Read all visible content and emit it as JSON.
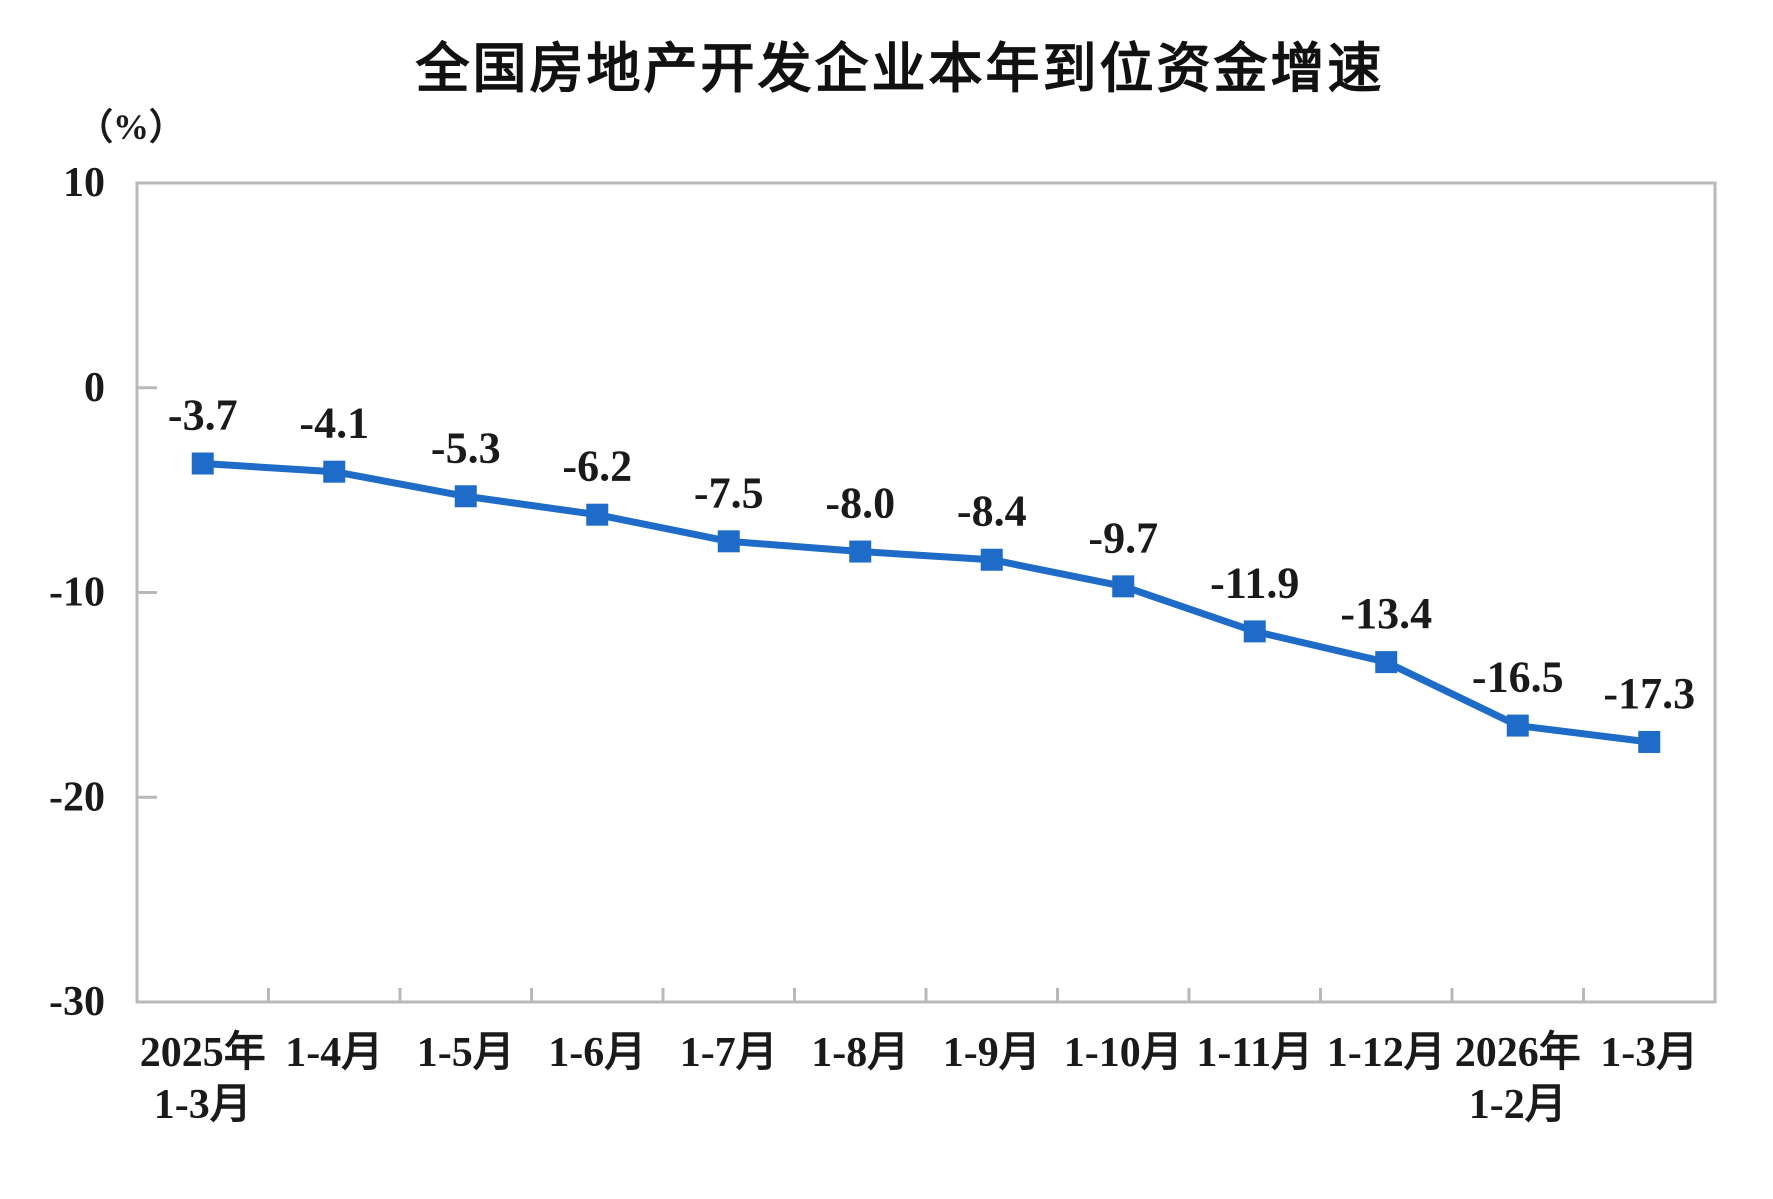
{
  "page": {
    "title": "全国房地产开发企业本年到位资金增速",
    "unit_label": "（%）"
  },
  "chart_data": {
    "type": "line",
    "title": "全国房地产开发企业本年到位资金增速",
    "ylabel": "（%）",
    "xlabel": "",
    "ylim": [
      -30,
      10
    ],
    "y_ticks": [
      10,
      0,
      -10,
      -20,
      -30
    ],
    "grid": false,
    "legend_position": "none",
    "categories": [
      [
        "2025年",
        "1-3月"
      ],
      [
        "1-4月"
      ],
      [
        "1-5月"
      ],
      [
        "1-6月"
      ],
      [
        "1-7月"
      ],
      [
        "1-8月"
      ],
      [
        "1-9月"
      ],
      [
        "1-10月"
      ],
      [
        "1-11月"
      ],
      [
        "1-12月"
      ],
      [
        "2026年",
        "1-2月"
      ],
      [
        "1-3月"
      ]
    ],
    "values": [
      -3.7,
      -4.1,
      -5.3,
      -6.2,
      -7.5,
      -8.0,
      -8.4,
      -9.7,
      -11.9,
      -13.4,
      -16.5,
      -17.3
    ],
    "data_labels": [
      "-3.7",
      "-4.1",
      "-5.3",
      "-6.2",
      "-7.5",
      "-8.0",
      "-8.4",
      "-9.7",
      "-11.9",
      "-13.4",
      "-16.5",
      "-17.3"
    ],
    "marker": "square",
    "colors": {
      "line": "#1e6cc7",
      "marker": "#1e6cc7",
      "text": "#1a1a1a",
      "axis": "#b9b9b9",
      "background": "#ffffff"
    }
  }
}
